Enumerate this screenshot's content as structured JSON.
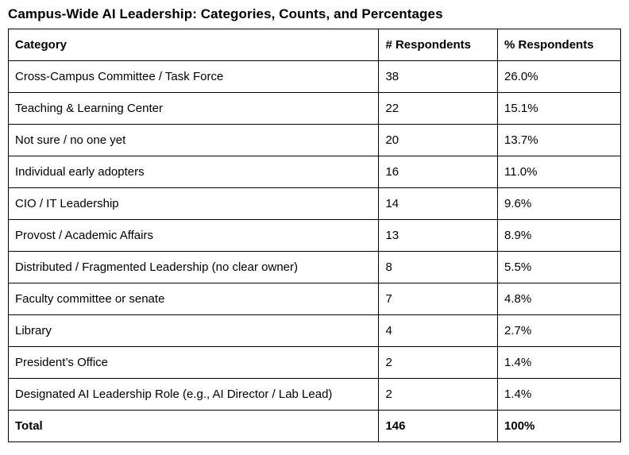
{
  "title": "Campus-Wide AI Leadership: Categories, Counts, and Percentages",
  "chart_data": {
    "type": "table",
    "title": "Campus-Wide AI Leadership: Categories, Counts, and Percentages",
    "columns": [
      "Category",
      "# Respondents",
      "% Respondents"
    ],
    "rows": [
      [
        "Cross-Campus Committee / Task Force",
        "38",
        "26.0%"
      ],
      [
        "Teaching & Learning Center",
        "22",
        "15.1%"
      ],
      [
        "Not sure / no one yet",
        "20",
        "13.7%"
      ],
      [
        "Individual early adopters",
        "16",
        "11.0%"
      ],
      [
        "CIO / IT Leadership",
        "14",
        "9.6%"
      ],
      [
        "Provost / Academic Affairs",
        "13",
        "8.9%"
      ],
      [
        "Distributed / Fragmented Leadership (no clear owner)",
        "8",
        "5.5%"
      ],
      [
        "Faculty committee or senate",
        "7",
        "4.8%"
      ],
      [
        "Library",
        "4",
        "2.7%"
      ],
      [
        "President’s Office",
        "2",
        "1.4%"
      ],
      [
        "Designated AI Leadership Role (e.g., AI Director / Lab Lead)",
        "2",
        "1.4%"
      ]
    ],
    "total_row": [
      "Total",
      "146",
      "100%"
    ],
    "layout": {
      "grid": true,
      "header_bold": true,
      "total_row_bold": true
    }
  }
}
